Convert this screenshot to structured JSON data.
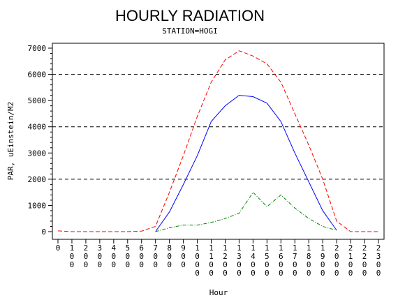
{
  "chart_data": {
    "type": "line",
    "title": "HOURLY RADIATION",
    "subtitle": "STATION=HOGI",
    "xlabel": "Hour",
    "ylabel": "PAR, uEinstein/M2",
    "xlim": [
      0,
      2300
    ],
    "ylim": [
      0,
      7000
    ],
    "y_ticks": [
      0,
      1000,
      2000,
      3000,
      4000,
      5000,
      6000,
      7000
    ],
    "y_tick_labels": [
      "0",
      "1000",
      "2000",
      "3000",
      "4000",
      "5000",
      "6000",
      "7000"
    ],
    "y_minor_step": 200,
    "x_ticks": [
      0,
      100,
      200,
      300,
      400,
      500,
      600,
      700,
      800,
      900,
      1000,
      1100,
      1200,
      1300,
      1400,
      1500,
      1600,
      1700,
      1800,
      1900,
      2000,
      2100,
      2200,
      2300
    ],
    "x_tick_labels": [
      "0",
      "100",
      "200",
      "300",
      "400",
      "500",
      "600",
      "700",
      "800",
      "900",
      "1000",
      "1100",
      "1200",
      "1300",
      "1400",
      "1500",
      "1600",
      "1700",
      "1800",
      "1900",
      "2000",
      "2100",
      "2200",
      "2300"
    ],
    "reference_lines": [
      2000,
      4000,
      6000
    ],
    "reference_line_color": "#000000",
    "legend": "none",
    "series": [
      {
        "color": "#ff0000",
        "style": "dashed",
        "x": [
          0,
          100,
          200,
          300,
          400,
          500,
          600,
          700,
          800,
          900,
          1000,
          1100,
          1200,
          1300,
          1400,
          1500,
          1600,
          1700,
          1800,
          1900,
          2000,
          2100,
          2200,
          2300
        ],
        "values": [
          30,
          0,
          0,
          0,
          0,
          0,
          20,
          200,
          1500,
          2900,
          4400,
          5700,
          6550,
          6900,
          6700,
          6400,
          5700,
          4500,
          3300,
          2000,
          400,
          0,
          0,
          0
        ]
      },
      {
        "color": "#0000ff",
        "style": "solid",
        "x": [
          700,
          800,
          900,
          1000,
          1100,
          1200,
          1300,
          1400,
          1500,
          1600,
          1700,
          1800,
          1900,
          2000
        ],
        "values": [
          0,
          750,
          1800,
          2900,
          4200,
          4800,
          5200,
          5150,
          4900,
          4200,
          3000,
          1900,
          800,
          50
        ]
      },
      {
        "color": "#008000",
        "style": "dashdot",
        "x": [
          700,
          800,
          900,
          1000,
          1100,
          1200,
          1300,
          1400,
          1500,
          1600,
          1700,
          1800,
          1900,
          2000
        ],
        "values": [
          0,
          150,
          250,
          250,
          350,
          500,
          700,
          1500,
          950,
          1400,
          900,
          500,
          200,
          50
        ]
      }
    ]
  }
}
